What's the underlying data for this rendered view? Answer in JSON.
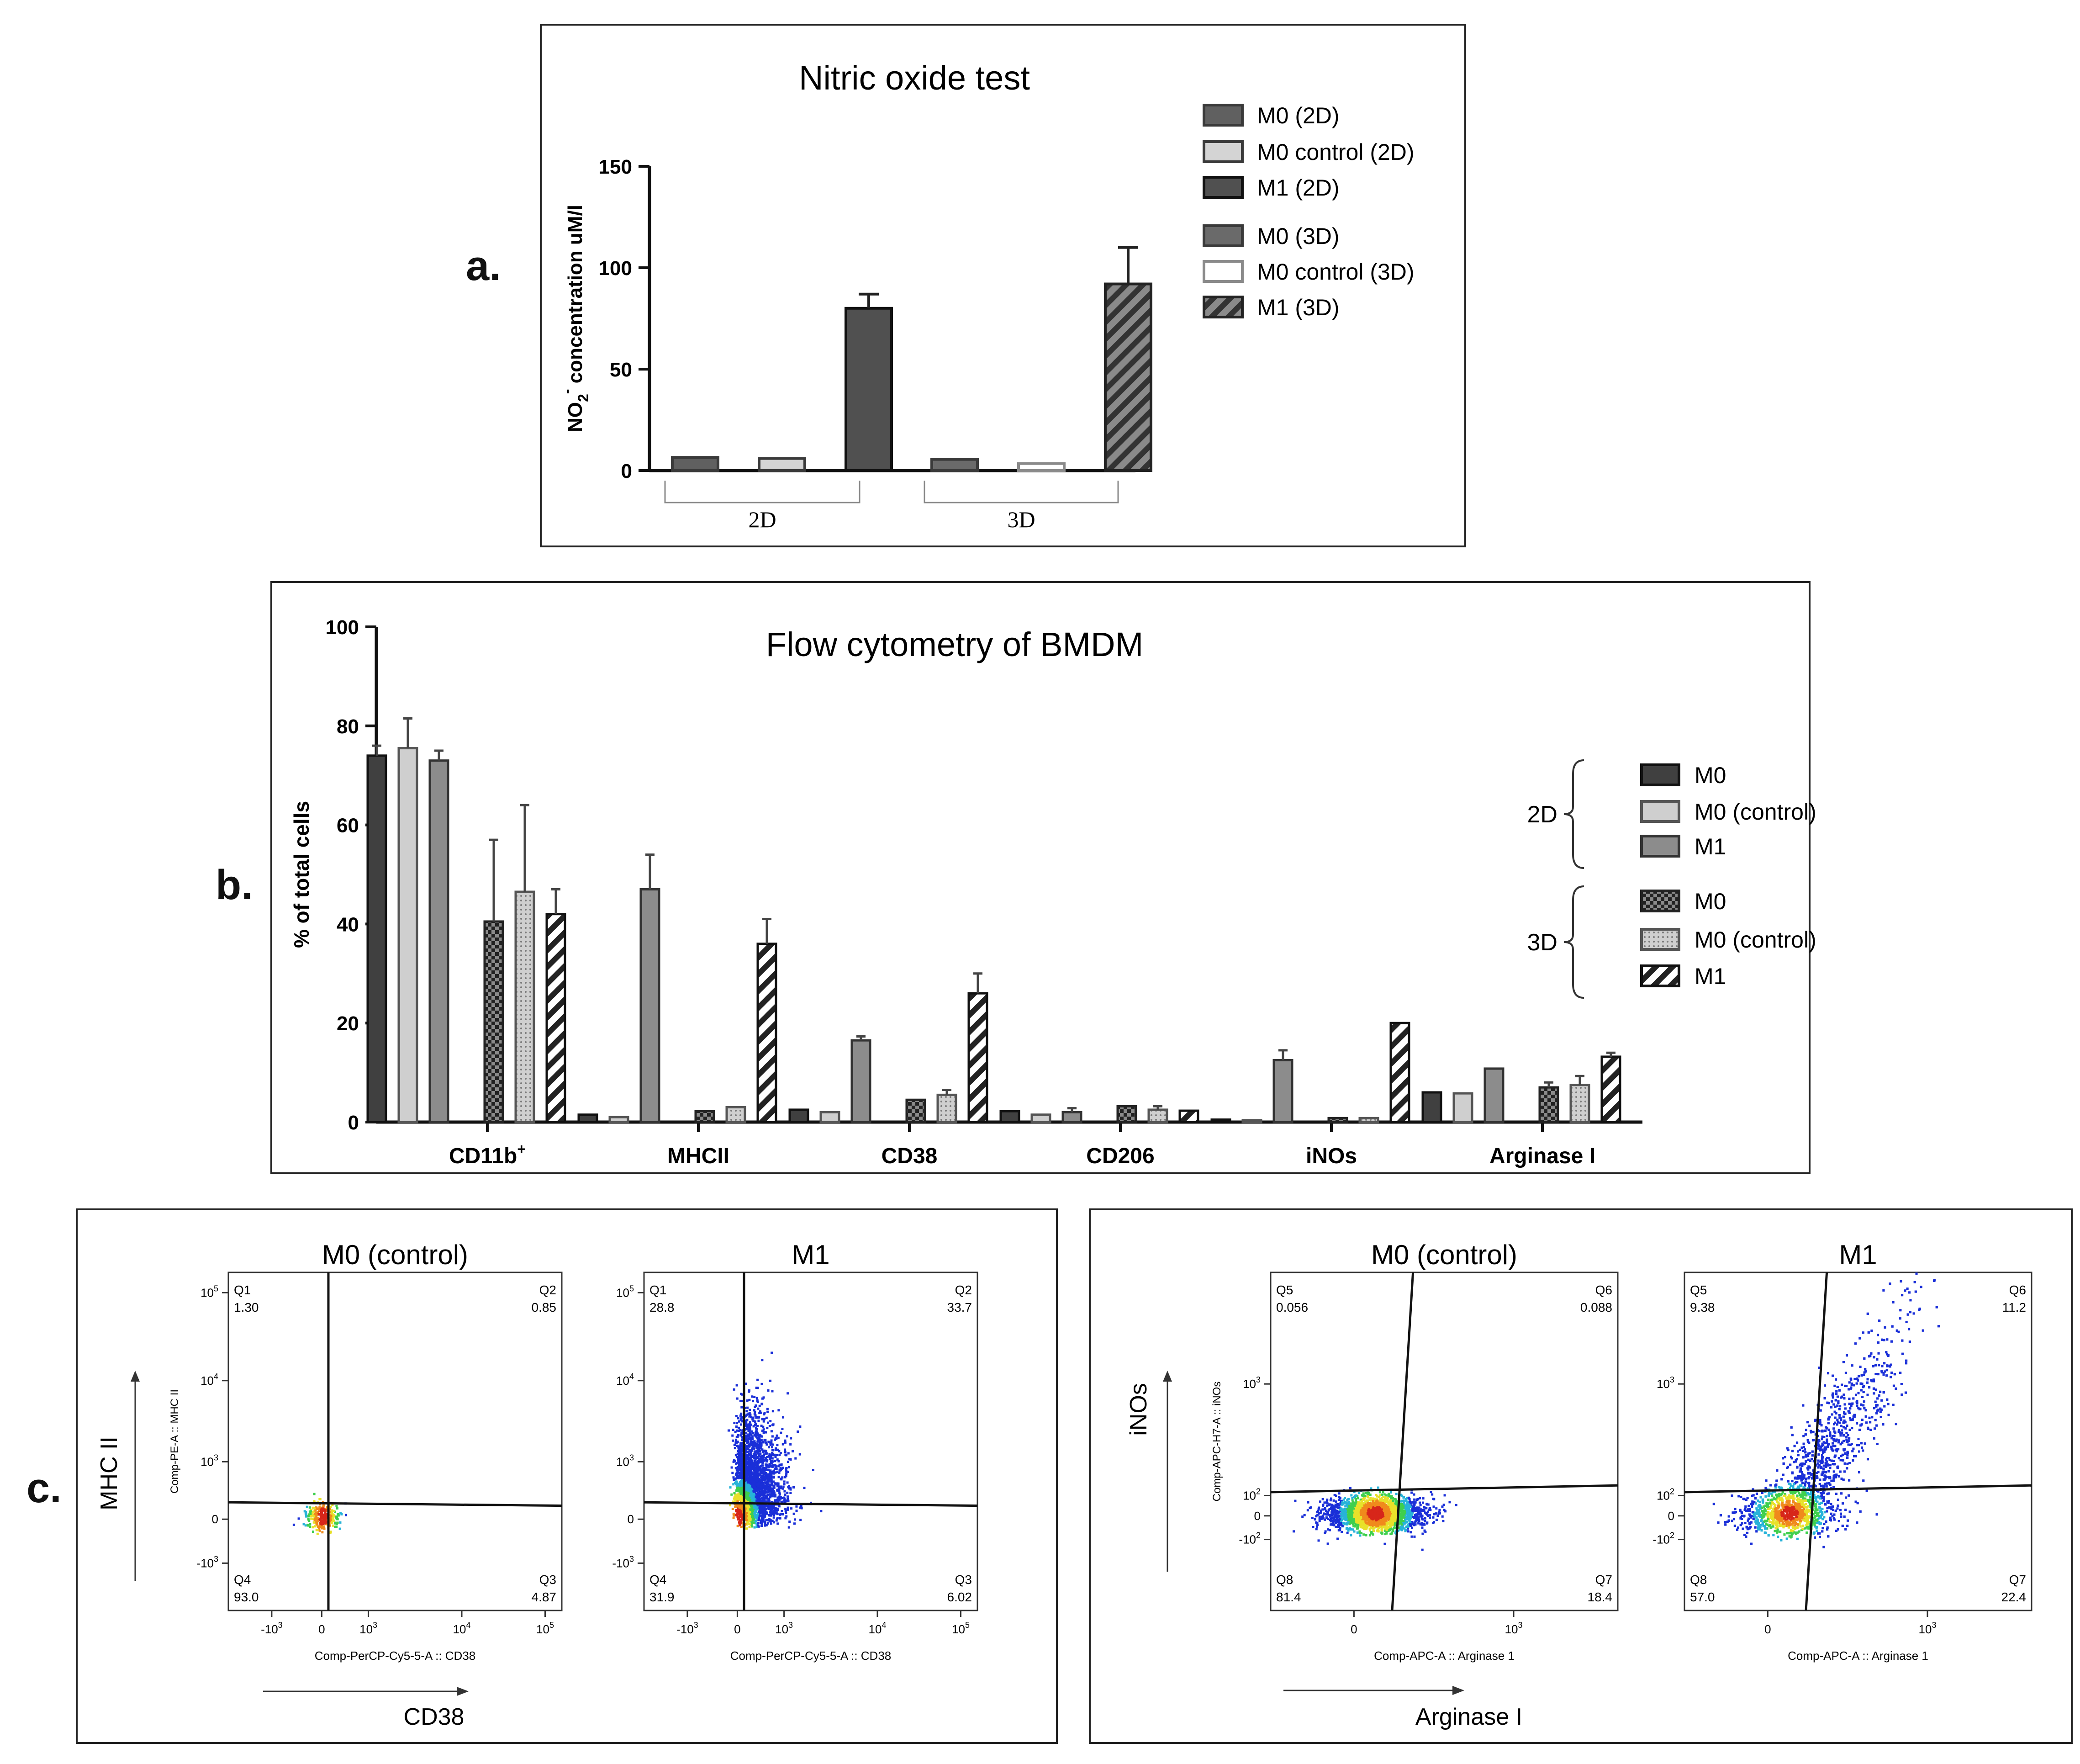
{
  "panels": {
    "a": {
      "letter": "a.",
      "chart_data": {
        "type": "bar",
        "title": "Nitric oxide test",
        "ylabel_main": "NO",
        "ylabel_sub": "2",
        "ylabel_sup": "-",
        "ylabel_rest": " concentration uM/l",
        "ylim": [
          0,
          150
        ],
        "yticks": [
          0,
          50,
          100,
          150
        ],
        "groups": [
          "2D",
          "3D"
        ],
        "series": [
          {
            "name": "M0 (2D)",
            "group": 0,
            "value": 6.5,
            "err": 0.5,
            "fill": "#606060",
            "pattern": "none",
            "stroke": "#3a3a3a"
          },
          {
            "name": "M0 control (2D)",
            "group": 0,
            "value": 6,
            "err": 0.5,
            "fill": "#d4d4d4",
            "pattern": "none",
            "stroke": "#3a3a3a"
          },
          {
            "name": "M1 (2D)",
            "group": 0,
            "value": 80,
            "err": 7,
            "fill": "#505050",
            "pattern": "none",
            "stroke": "#111111"
          },
          {
            "name": "M0 (3D)",
            "group": 1,
            "value": 5.5,
            "err": 0.5,
            "fill": "#6a6a6a",
            "pattern": "none",
            "stroke": "#3a3a3a"
          },
          {
            "name": "M0 control (3D)",
            "group": 1,
            "value": 3.5,
            "err": 0.5,
            "fill": "#ffffff",
            "pattern": "none",
            "stroke": "#8a8a8a"
          },
          {
            "name": "M1 (3D)",
            "group": 1,
            "value": 92,
            "err": 18,
            "fill": "#6a6a6a",
            "pattern": "stripe",
            "stroke": "#222222"
          }
        ]
      }
    },
    "b": {
      "letter": "b.",
      "chart_data": {
        "type": "bar",
        "title": "Flow cytometry of BMDM",
        "ylabel": "% of total cells",
        "ylim": [
          0,
          100
        ],
        "yticks": [
          0,
          20,
          40,
          60,
          80,
          100
        ],
        "categories": [
          "CD11b",
          "MHCII",
          "CD38",
          "CD206",
          "iNOs",
          "Arginase I"
        ],
        "category_sup": [
          "+",
          "",
          "",
          "",
          "",
          ""
        ],
        "legend_groups": [
          {
            "label": "2D",
            "items": [
              "M0",
              "M0 (control)",
              "M1"
            ]
          },
          {
            "label": "3D",
            "items": [
              "M0",
              "M0 (control)",
              "M1"
            ]
          }
        ],
        "series": [
          {
            "name": "M0 (2D)",
            "fill": "#404040",
            "pattern": "none",
            "stroke": "#111",
            "values": [
              74,
              1.5,
              2.5,
              2.2,
              0.5,
              6
            ],
            "errors": [
              2,
              0.3,
              0.3,
              0.3,
              0.1,
              0.3
            ]
          },
          {
            "name": "M0 (control) (2D)",
            "fill": "#cfcfcf",
            "pattern": "none",
            "stroke": "#555",
            "values": [
              75.5,
              1,
              2,
              1.5,
              0.4,
              5.8
            ],
            "errors": [
              6,
              0.2,
              0.3,
              0.3,
              0.1,
              0.3
            ]
          },
          {
            "name": "M1 (2D)",
            "fill": "#8c8c8c",
            "pattern": "none",
            "stroke": "#333",
            "values": [
              73,
              47,
              16.5,
              2,
              12.5,
              10.8
            ],
            "errors": [
              2,
              7,
              0.8,
              0.8,
              2,
              0.3
            ]
          },
          {
            "name": "M0 (3D)",
            "fill": "#555555",
            "pattern": "checker",
            "stroke": "#222",
            "values": [
              40.5,
              2.2,
              4.5,
              3.2,
              0.8,
              7
            ],
            "errors": [
              16.5,
              0.3,
              0.6,
              0.5,
              0.2,
              1
            ]
          },
          {
            "name": "M0 (control) (3D)",
            "fill": "#bdbdbd",
            "pattern": "dots",
            "stroke": "#555",
            "values": [
              46.5,
              3,
              5.5,
              2.5,
              0.8,
              7.5
            ],
            "errors": [
              17.5,
              0.5,
              1,
              0.7,
              0.2,
              1.8
            ]
          },
          {
            "name": "M1 (3D)",
            "fill": "#ffffff",
            "pattern": "stripe",
            "stroke": "#111",
            "values": [
              42,
              36,
              26,
              2.3,
              20,
              13.2
            ],
            "errors": [
              5,
              5,
              4,
              0.5,
              0.3,
              0.8
            ]
          }
        ]
      }
    },
    "c": {
      "letter": "c.",
      "left": {
        "axis_y_label": "MHC II",
        "axis_x_label": "CD38",
        "plots": [
          {
            "title": "M0 (control)",
            "xaxis": "Comp-PerCP-Cy5-5-A :: CD38",
            "yaxis": "Comp-PE-A :: MHC II",
            "quadrants": [
              {
                "name": "Q1",
                "value": "1.30"
              },
              {
                "name": "Q2",
                "value": "0.85"
              },
              {
                "name": "Q4",
                "value": "93.0"
              },
              {
                "name": "Q3",
                "value": "4.87"
              }
            ]
          },
          {
            "title": "M1",
            "xaxis": "Comp-PerCP-Cy5-5-A :: CD38",
            "yaxis": "",
            "quadrants": [
              {
                "name": "Q1",
                "value": "28.8"
              },
              {
                "name": "Q2",
                "value": "33.7"
              },
              {
                "name": "Q4",
                "value": "31.9"
              },
              {
                "name": "Q3",
                "value": "6.02"
              }
            ]
          }
        ],
        "xticks": [
          "-10",
          "0",
          "10",
          "10",
          "10"
        ],
        "xtick_exp": [
          "3",
          "",
          "3",
          "4",
          "5"
        ],
        "yticks": [
          "10",
          "10",
          "10",
          "0",
          "-10"
        ],
        "ytick_exp": [
          "5",
          "4",
          "3",
          "",
          "3"
        ]
      },
      "right": {
        "axis_y_label": "iNOs",
        "axis_x_label": "Arginase I",
        "plots": [
          {
            "title": "M0 (control)",
            "xaxis": "Comp-APC-A :: Arginase 1",
            "yaxis": "Comp-APC-H7-A :: iNOs",
            "quadrants": [
              {
                "name": "Q5",
                "value": "0.056"
              },
              {
                "name": "Q6",
                "value": "0.088"
              },
              {
                "name": "Q8",
                "value": "81.4"
              },
              {
                "name": "Q7",
                "value": "18.4"
              }
            ]
          },
          {
            "title": "M1",
            "xaxis": "Comp-APC-A :: Arginase 1",
            "yaxis": "",
            "quadrants": [
              {
                "name": "Q5",
                "value": "9.38"
              },
              {
                "name": "Q6",
                "value": "11.2"
              },
              {
                "name": "Q8",
                "value": "57.0"
              },
              {
                "name": "Q7",
                "value": "22.4"
              }
            ]
          }
        ],
        "xticks": [
          "0",
          "10"
        ],
        "xtick_exp": [
          "",
          "3"
        ],
        "yticks": [
          "10",
          "10",
          "0",
          "-10"
        ],
        "ytick_exp": [
          "3",
          "2",
          "",
          "2"
        ]
      }
    }
  }
}
